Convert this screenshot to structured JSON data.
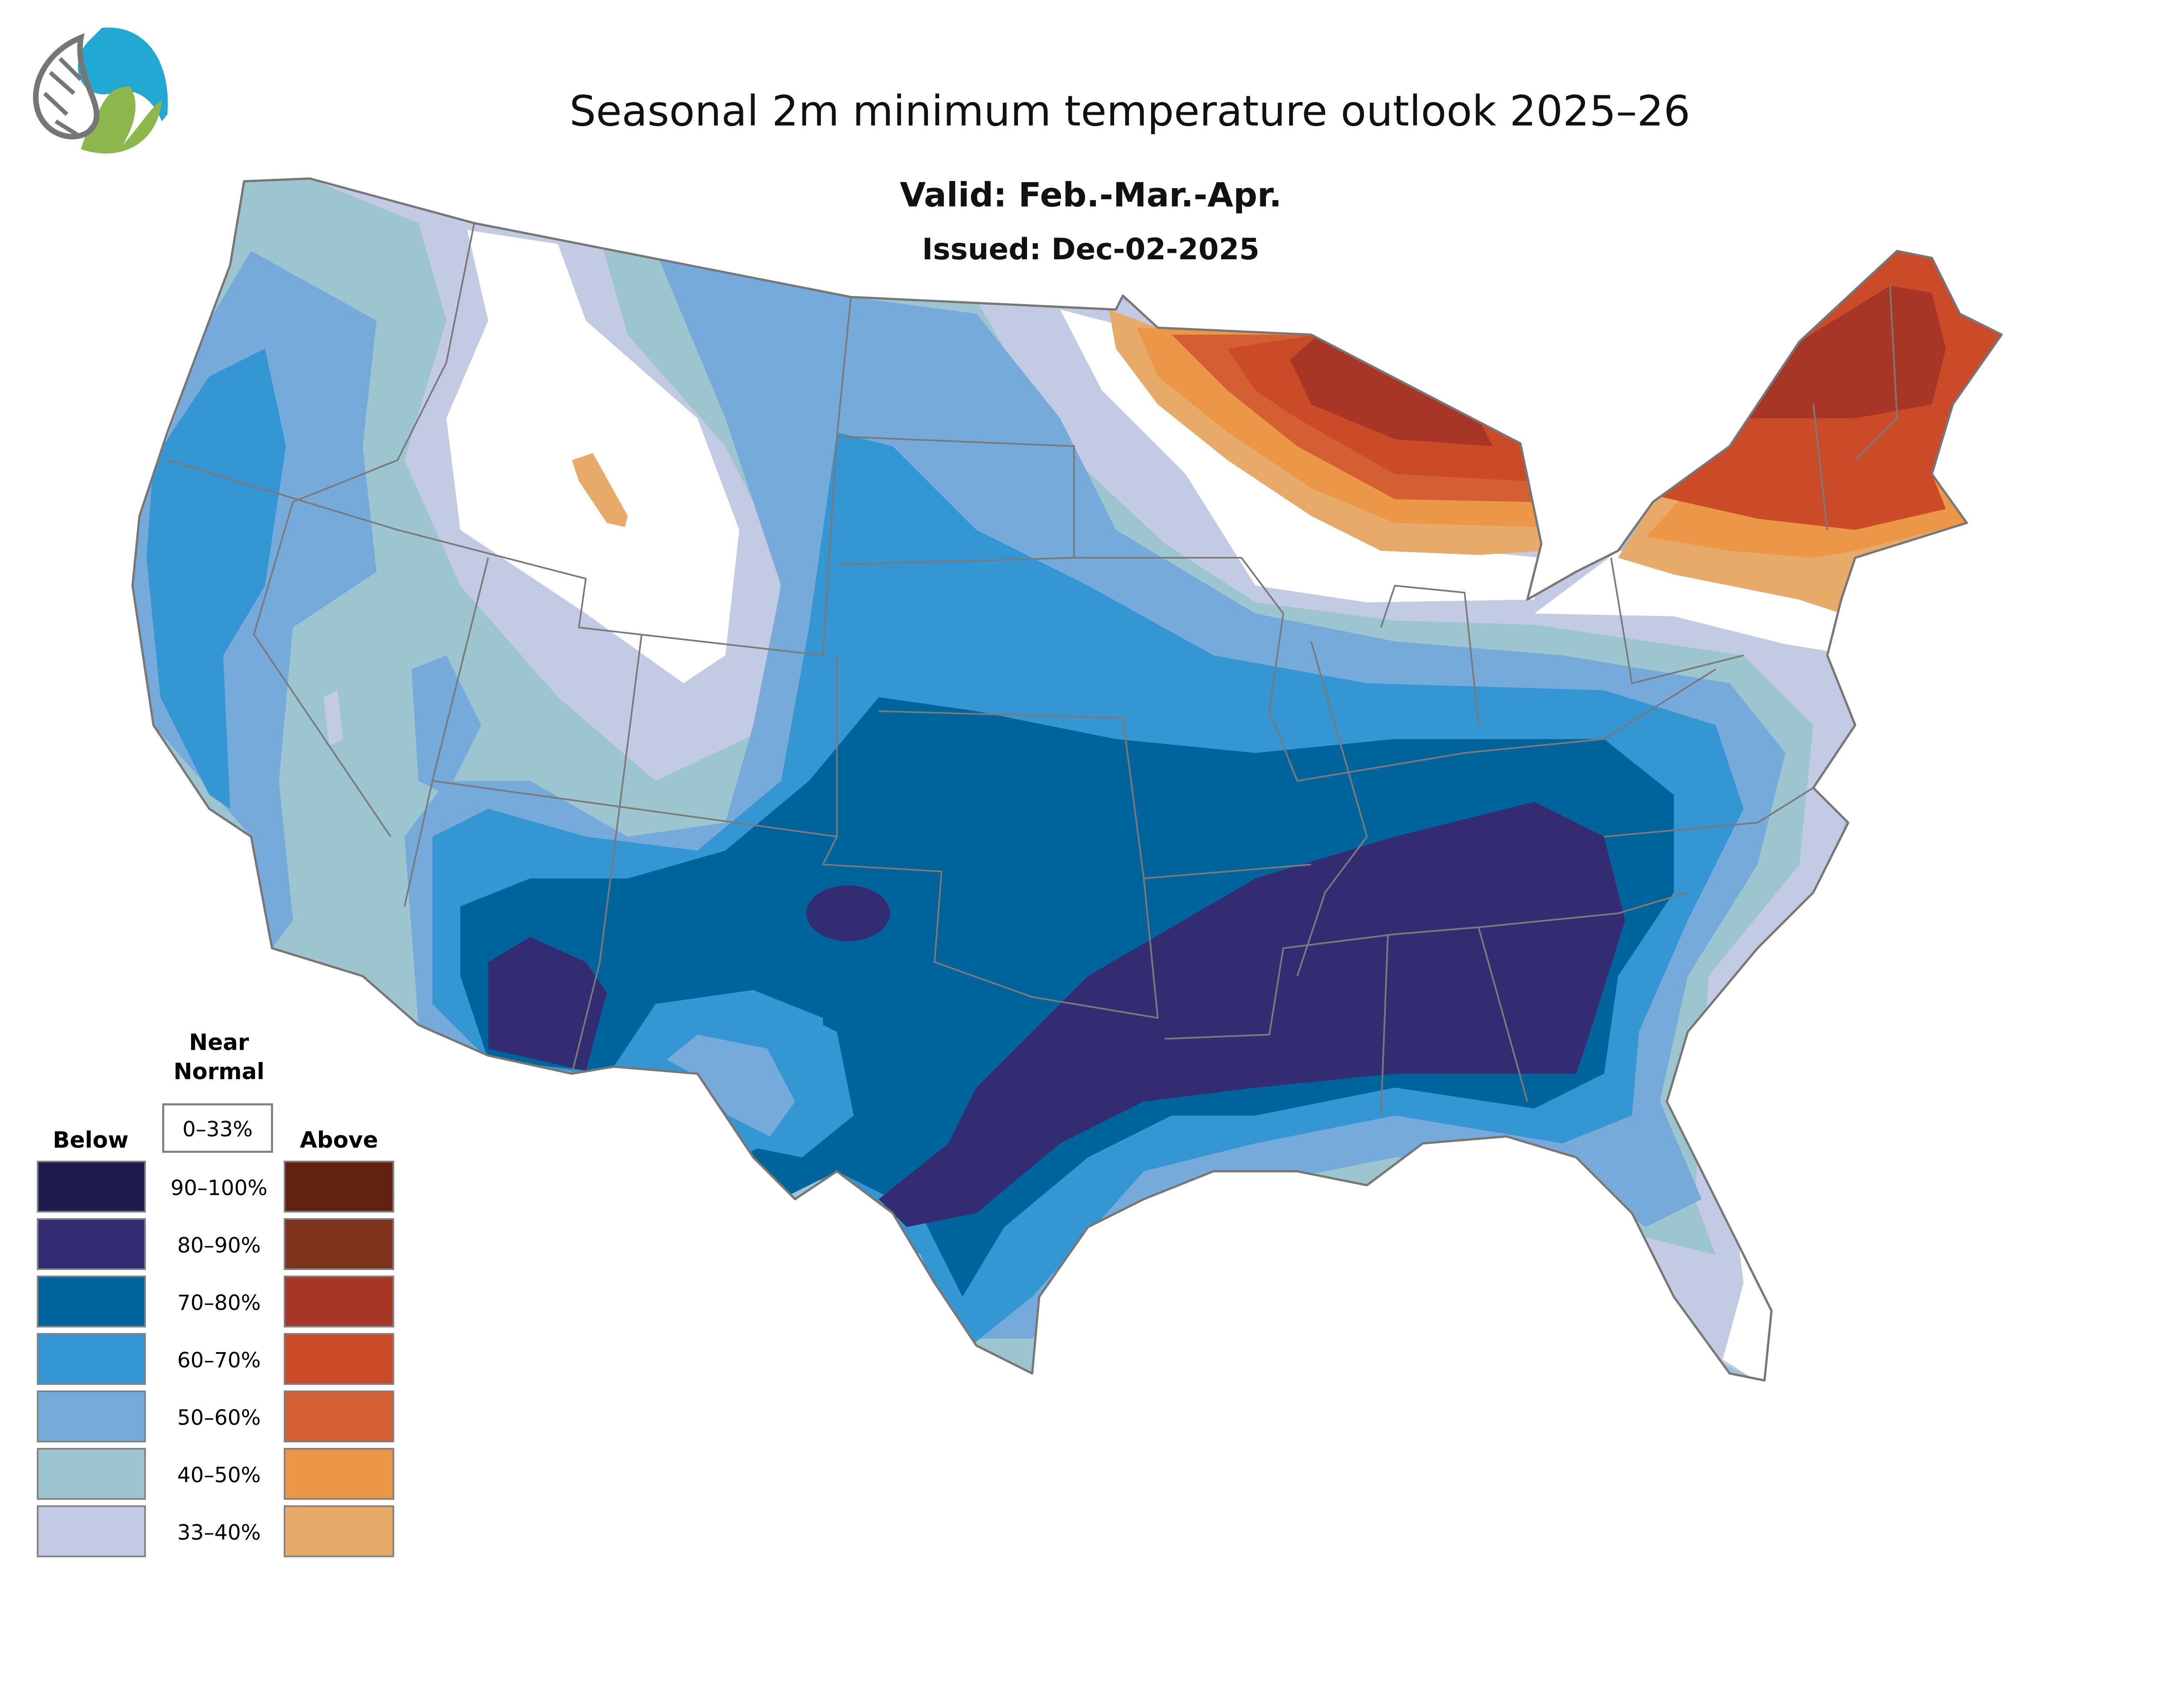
{
  "header": {
    "title": "Seasonal 2m minimum temperature outlook 2025–26",
    "valid": "Valid: Feb.-Mar.-Apr.",
    "issued": "Issued: Dec-02-2025"
  },
  "logo": {
    "icon": "circuit-water-leaf-logo",
    "colors": {
      "gray": "#757777",
      "blue": "#21a9d4",
      "green": "#8db74c"
    }
  },
  "legend": {
    "near_normal_title": "Near Normal",
    "near_normal_line1": "Near",
    "near_normal_line2": "Normal",
    "near_normal_range": "0–33%",
    "below_label": "Below",
    "above_label": "Above",
    "rows": [
      {
        "range": "90–100%",
        "below_color": "#1e1b4f",
        "above_color": "#612310"
      },
      {
        "range": "80–90%",
        "below_color": "#332c72",
        "above_color": "#7e331c"
      },
      {
        "range": "70–80%",
        "below_color": "#00649c",
        "above_color": "#a73626"
      },
      {
        "range": "60–70%",
        "below_color": "#3497d3",
        "above_color": "#cb4b28"
      },
      {
        "range": "50–60%",
        "below_color": "#76aadb",
        "above_color": "#d35f32"
      },
      {
        "range": "40–50%",
        "below_color": "#9cc5d0",
        "above_color": "#ec9647"
      },
      {
        "range": "33–40%",
        "below_color": "#c3cbe4",
        "above_color": "#e8aa68"
      }
    ]
  }
}
